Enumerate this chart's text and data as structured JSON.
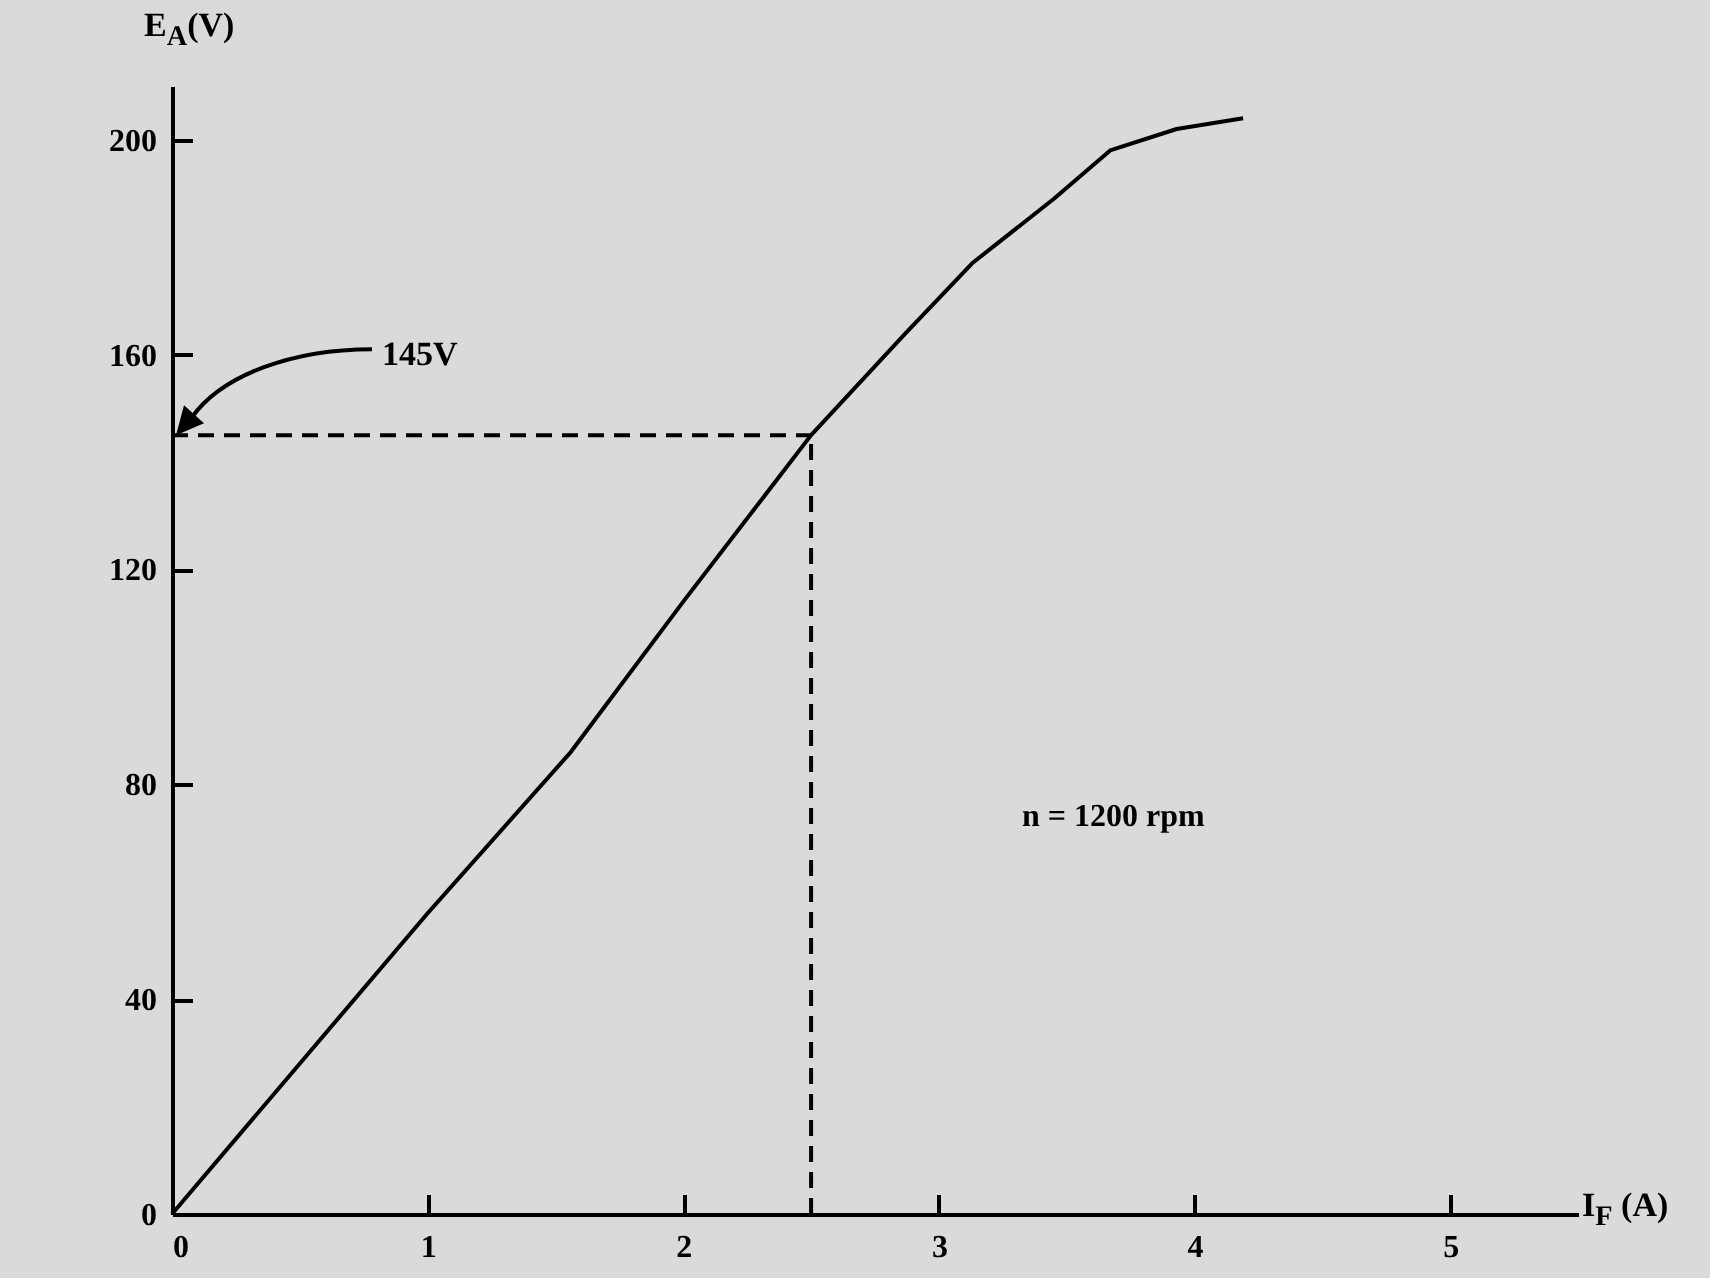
{
  "chart_data": {
    "type": "line",
    "xlabel": "I$_{F}$ (A)",
    "ylabel": "E$_{A}$(V)",
    "x": [
      0,
      1,
      1.56,
      2,
      2.5,
      2.87,
      3.13,
      3.45,
      3.67,
      3.93,
      4.19
    ],
    "series": [
      {
        "color": "#000000",
        "values": [
          0,
          56,
          86,
          114,
          145,
          164,
          177,
          189,
          198,
          202,
          204
        ]
      }
    ],
    "xlim": [
      0,
      5.5
    ],
    "ylim": [
      0,
      210
    ],
    "xticks": [
      0,
      1,
      2,
      3,
      4,
      5
    ],
    "yticks": [
      0,
      40,
      80,
      120,
      160,
      200
    ],
    "marker": "none",
    "line_style": "solid",
    "ref_lines": [
      {
        "axis": "y",
        "value": 145,
        "line_style": "dashed"
      },
      {
        "axis": "x",
        "value": 2.5,
        "line_style": "dashed"
      }
    ],
    "annotations": [
      "145V",
      "n = 1200 rpm"
    ]
  }
}
